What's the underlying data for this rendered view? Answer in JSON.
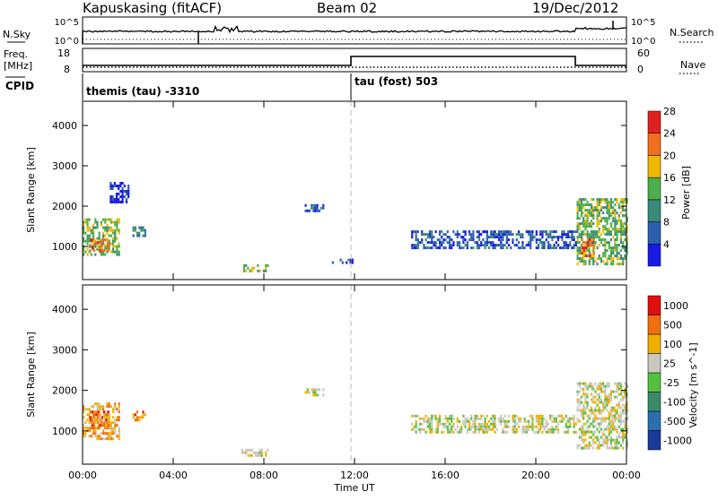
{
  "header": {
    "station": "Kapuskasing (fitACF)",
    "beam": "Beam 02",
    "date": "19/Dec/2012"
  },
  "small_panels": {
    "nsky_label": "N.Sky",
    "nsearch_label": "N.Search",
    "freq_label_1": "Freq.",
    "freq_label_2": "[MHz]",
    "nave_label": "Nave",
    "cpid_label": "CPID",
    "nsky_ticks": [
      "10^5",
      "10^0"
    ],
    "nsearch_ticks": [
      "10^5",
      "10^0"
    ],
    "freq_ticks": [
      "18",
      "8"
    ],
    "nave_ticks": [
      "60",
      "0"
    ]
  },
  "cpid": {
    "segments": [
      {
        "label": "themis (tau) -3310",
        "start_hour": 0.0
      },
      {
        "label": "tau (fost) 503",
        "start_hour": 12.0
      }
    ]
  },
  "chart_data": [
    {
      "type": "heatmap",
      "name": "power",
      "ylabel": "Slant Range [km]",
      "xlabel": "Time UT",
      "xlim": [
        0,
        24
      ],
      "ylim": [
        180,
        4600
      ],
      "x_ticks": [
        "00:00",
        "04:00",
        "08:00",
        "12:00",
        "16:00",
        "20:00",
        "00:00"
      ],
      "y_ticks": [
        1000,
        2000,
        3000,
        4000
      ],
      "colorbar": {
        "label": "Power [dB]",
        "ticks": [
          "4",
          "8",
          "12",
          "16",
          "20",
          "24",
          "28"
        ],
        "colors": [
          "#1a1ae6",
          "#2b5fb0",
          "#3a8a7a",
          "#4daf4a",
          "#f0b800",
          "#f07020",
          "#e02020"
        ]
      },
      "regions": [
        {
          "t0": 0.0,
          "t1": 1.6,
          "r0": 800,
          "r1": 1700,
          "level": 3
        },
        {
          "t0": 0.3,
          "t1": 1.1,
          "r0": 900,
          "r1": 1200,
          "level": 5
        },
        {
          "t0": 2.2,
          "t1": 2.8,
          "r0": 1300,
          "r1": 1500,
          "level": 2
        },
        {
          "t0": 1.2,
          "t1": 2.0,
          "r0": 2100,
          "r1": 2600,
          "level": 0
        },
        {
          "t0": 7.0,
          "t1": 8.2,
          "r0": 420,
          "r1": 560,
          "level": 3
        },
        {
          "t0": 9.8,
          "t1": 10.6,
          "r0": 1900,
          "r1": 2050,
          "level": 1
        },
        {
          "t0": 11.0,
          "t1": 11.9,
          "r0": 600,
          "r1": 700,
          "level": 1
        },
        {
          "t0": 14.5,
          "t1": 21.8,
          "r0": 1000,
          "r1": 1400,
          "level": 1
        },
        {
          "t0": 21.8,
          "t1": 24.0,
          "r0": 600,
          "r1": 2200,
          "level": 3
        },
        {
          "t0": 22.0,
          "t1": 22.6,
          "r0": 800,
          "r1": 1200,
          "level": 5
        }
      ]
    },
    {
      "type": "heatmap",
      "name": "velocity",
      "ylabel": "Slant Range [km]",
      "xlabel": "Time UT",
      "xlim": [
        0,
        24
      ],
      "ylim": [
        180,
        4600
      ],
      "x_ticks": [
        "00:00",
        "04:00",
        "08:00",
        "12:00",
        "16:00",
        "20:00",
        "00:00"
      ],
      "y_ticks": [
        1000,
        2000,
        3000,
        4000
      ],
      "colorbar": {
        "label": "Velocity [m s^-1]",
        "ticks": [
          "1000",
          "500",
          "100",
          "25",
          "-25",
          "-100",
          "-500",
          "-1000"
        ],
        "colors": [
          "#1a3a9a",
          "#2b6fb0",
          "#3a8a6a",
          "#55c040",
          "#c8c8c0",
          "#f0b000",
          "#f07010",
          "#e01010"
        ]
      },
      "regions": [
        {
          "t0": 0.0,
          "t1": 1.6,
          "r0": 800,
          "r1": 1700,
          "level": 5
        },
        {
          "t0": 0.3,
          "t1": 1.1,
          "r0": 1100,
          "r1": 1500,
          "level": 6
        },
        {
          "t0": 2.2,
          "t1": 2.8,
          "r0": 1300,
          "r1": 1500,
          "level": 6
        },
        {
          "t0": 7.0,
          "t1": 8.2,
          "r0": 420,
          "r1": 560,
          "level": 4
        },
        {
          "t0": 9.8,
          "t1": 10.6,
          "r0": 1900,
          "r1": 2050,
          "level": 4
        },
        {
          "t0": 14.5,
          "t1": 21.8,
          "r0": 1000,
          "r1": 1400,
          "level": 4
        },
        {
          "t0": 21.8,
          "t1": 24.0,
          "r0": 600,
          "r1": 2200,
          "level": 4
        }
      ]
    }
  ]
}
